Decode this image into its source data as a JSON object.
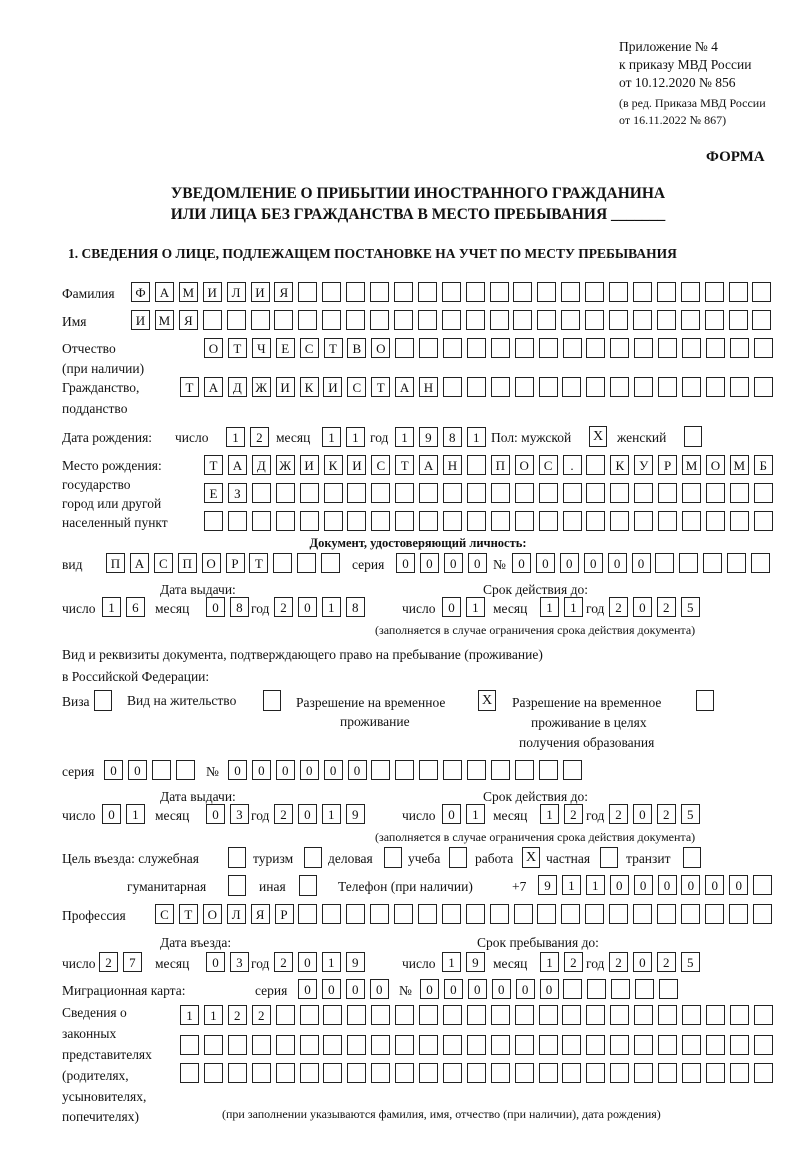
{
  "header": {
    "appendix": "Приложение № 4",
    "order": "к приказу МВД России",
    "order_date": "от 10.12.2020 № 856",
    "revision": "(в ред. Приказа МВД России",
    "revision_date": "от 16.11.2022 № 867)",
    "form_label": "ФОРМА"
  },
  "title": {
    "line1": "УВЕДОМЛЕНИЕ О ПРИБЫТИИ ИНОСТРАННОГО ГРАЖДАНИНА",
    "line2": "ИЛИ ЛИЦА БЕЗ ГРАЖДАНСТВА В МЕСТО ПРЕБЫВАНИЯ _______"
  },
  "section1": {
    "heading": "1. СВЕДЕНИЯ О ЛИЦЕ, ПОДЛЕЖАЩЕМ ПОСТАНОВКЕ НА УЧЕТ ПО МЕСТУ ПРЕБЫВАНИЯ"
  },
  "labels": {
    "surname": "Фамилия",
    "name": "Имя",
    "patronymic": "Отчество",
    "patronymic2": "(при наличии)",
    "citizenship": "Гражданство,",
    "citizenship2": "подданство",
    "dob": "Дата рождения:",
    "day": "число",
    "month": "месяц",
    "year": "год",
    "sex": "Пол: мужской",
    "female": "женский",
    "pob1": "Место рождения:",
    "pob2": "государство",
    "pob3": "город или другой",
    "pob4": "населенный пункт",
    "id_doc": "Документ, удостоверяющий личность:",
    "kind": "вид",
    "series": "серия",
    "number": "№",
    "issue_date": "Дата выдачи:",
    "valid_until": "Срок действия до:",
    "validity_note": "(заполняется в случае ограничения срока действия документа)",
    "right_doc1": "Вид и реквизиты документа, подтверждающего право на пребывание (проживание)",
    "right_doc2": "в Российской Федерации:",
    "visa": "Виза",
    "residence": "Вид на жительство",
    "trp1": "Разрешение на временное",
    "trp2": "проживание",
    "trpe1": "Разрешение на временное",
    "trpe2": "проживание в целях",
    "trpe3": "получения образования",
    "purpose": "Цель въезда: служебная",
    "tourism": "туризм",
    "business": "деловая",
    "study": "учеба",
    "work": "работа",
    "private": "частная",
    "transit": "транзит",
    "humanitarian": "гуманитарная",
    "other": "иная",
    "phone": "Телефон (при наличии)",
    "phone_prefix": "+7",
    "profession": "Профессия",
    "entry_date": "Дата въезда:",
    "stay_until": "Срок пребывания до:",
    "migration_card": "Миграционная карта:",
    "reps1": "Сведения о",
    "reps2": "законных",
    "reps3": "представителях",
    "reps4": "(родителях,",
    "reps5": "усыновителях,",
    "reps6": "попечителях)",
    "reps_note": "(при заполнении указываются фамилия, имя, отчество (при наличии), дата рождения)"
  },
  "person": {
    "surname": "ФАМИЛИЯ",
    "name": "ИМЯ",
    "patronymic": "ОТЧЕСТВО",
    "citizenship": "ТАДЖИКИСТАН",
    "dob_day": "12",
    "dob_month": "11",
    "dob_year": "1981",
    "male": "X",
    "female": "",
    "pob_line1": "ТАДЖИКИСТАН ПОС. КУРМОМБ",
    "pob_line2": "ЕЗ",
    "pob_line3": ""
  },
  "id_document": {
    "kind": "ПАСПОРТ",
    "series": "0000",
    "number": "000000",
    "issue_day": "16",
    "issue_month": "08",
    "issue_year": "2018",
    "valid_day": "01",
    "valid_month": "11",
    "valid_year": "2025"
  },
  "right_document": {
    "visa": "",
    "residence_permit": "",
    "temp_residence": "X",
    "temp_residence_edu": "",
    "series": "00",
    "number": "000000",
    "issue_day": "01",
    "issue_month": "03",
    "issue_year": "2019",
    "valid_day": "01",
    "valid_month": "12",
    "valid_year": "2025"
  },
  "purpose": {
    "official": "",
    "tourism": "",
    "business": "",
    "study": "",
    "work": "X",
    "private": "",
    "transit": "",
    "humanitarian": "",
    "other": ""
  },
  "phone": "911000000",
  "profession": "СТОЛЯР",
  "entry": {
    "day": "27",
    "month": "03",
    "year": "2019",
    "stay_day": "19",
    "stay_month": "12",
    "stay_year": "2025"
  },
  "migration_card": {
    "series": "0000",
    "number": "000000"
  },
  "representatives": {
    "line1": "1122",
    "line2": "",
    "line3": ""
  }
}
